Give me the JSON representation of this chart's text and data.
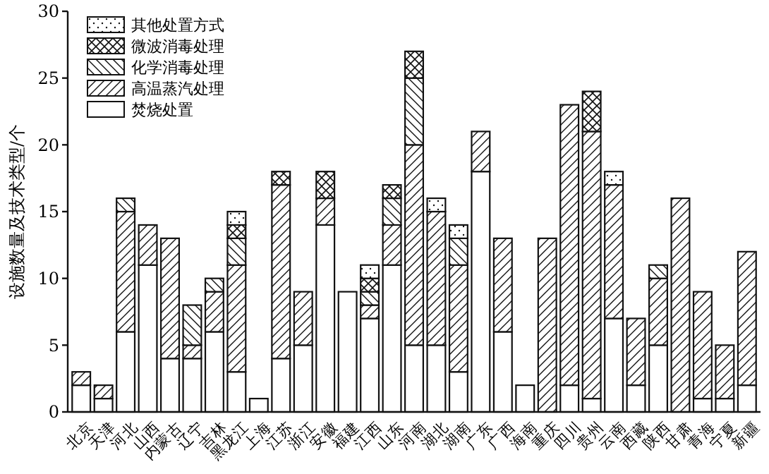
{
  "chart_data": {
    "type": "bar",
    "stacked": true,
    "ylabel": "设施数量及技术类型/个",
    "categories": [
      "北京",
      "天津",
      "河北",
      "山西",
      "内蒙古",
      "辽宁",
      "吉林",
      "黑龙江",
      "上海",
      "江苏",
      "浙江",
      "安徽",
      "福建",
      "江西",
      "山东",
      "河南",
      "湖北",
      "湖南",
      "广东",
      "广西",
      "海南",
      "重庆",
      "四川",
      "贵州",
      "云南",
      "西藏",
      "陕西",
      "甘肃",
      "青海",
      "宁夏",
      "新疆"
    ],
    "ylim": [
      0,
      30
    ],
    "yticks": [
      0,
      5,
      10,
      15,
      20,
      25,
      30
    ],
    "legend": "top left",
    "grid": false,
    "series": [
      {
        "name": "焚烧处置",
        "color": "#111111",
        "values": [
          2,
          1,
          6,
          11,
          4,
          4,
          6,
          3,
          1,
          4,
          5,
          14,
          9,
          7,
          11,
          5,
          5,
          3,
          18,
          6,
          2,
          0,
          2,
          1,
          7,
          2,
          5,
          0,
          1,
          1,
          2
        ]
      },
      {
        "name": "高温蒸汽处理",
        "color": "#111111",
        "values": [
          1,
          1,
          9,
          3,
          9,
          1,
          3,
          8,
          0,
          13,
          4,
          2,
          0,
          1,
          3,
          15,
          10,
          8,
          3,
          7,
          0,
          13,
          21,
          20,
          10,
          5,
          5,
          16,
          8,
          4,
          10
        ]
      },
      {
        "name": "化学消毒处理",
        "color": "#111111",
        "values": [
          0,
          0,
          1,
          0,
          0,
          3,
          1,
          2,
          0,
          0,
          0,
          0,
          0,
          1,
          2,
          5,
          0,
          2,
          0,
          0,
          0,
          0,
          0,
          0,
          0,
          0,
          1,
          0,
          0,
          0,
          0
        ]
      },
      {
        "name": "微波消毒处理",
        "color": "#111111",
        "values": [
          0,
          0,
          0,
          0,
          0,
          0,
          0,
          1,
          0,
          1,
          0,
          2,
          0,
          1,
          1,
          2,
          0,
          0,
          0,
          0,
          0,
          0,
          0,
          3,
          0,
          0,
          0,
          0,
          0,
          0,
          0
        ]
      },
      {
        "name": "其他处置方式",
        "color": "#111111",
        "values": [
          0,
          0,
          0,
          0,
          0,
          0,
          0,
          1,
          0,
          0,
          0,
          0,
          0,
          1,
          0,
          0,
          1,
          1,
          0,
          0,
          0,
          0,
          0,
          0,
          1,
          0,
          0,
          0,
          0,
          0,
          0
        ]
      }
    ]
  }
}
